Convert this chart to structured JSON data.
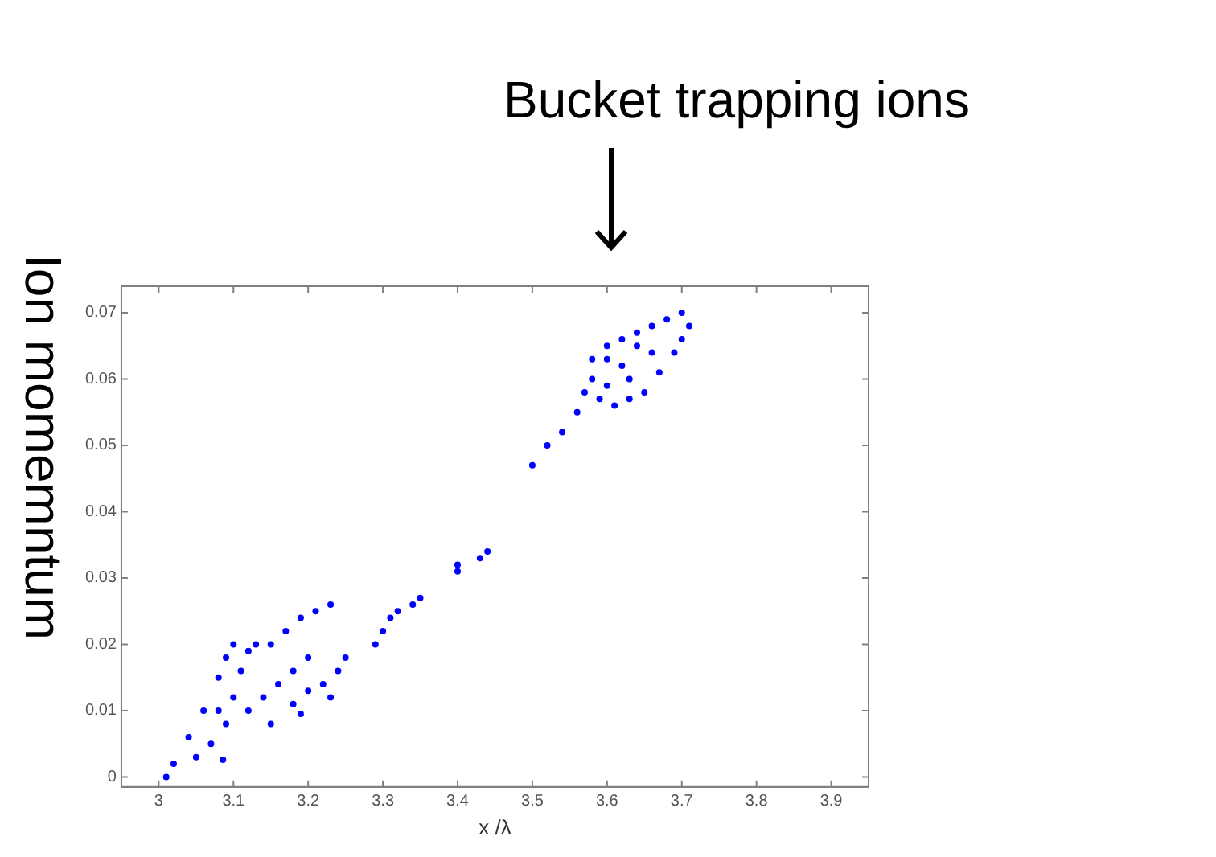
{
  "chart_data": {
    "type": "scatter",
    "xlabel": "x /λ",
    "ylabel": "Ion momemntum",
    "annotations": [
      "Bucket trapping ions"
    ],
    "xlim": [
      2.95,
      3.95
    ],
    "xticks": [
      3,
      3.1,
      3.2,
      3.3,
      3.4,
      3.5,
      3.6,
      3.7,
      3.8,
      3.9
    ],
    "ylim": [
      -0.0015,
      0.074
    ],
    "yticks": [
      0,
      0.01,
      0.02,
      0.03,
      0.04,
      0.05,
      0.06,
      0.07
    ],
    "marker": "circle",
    "series": [
      {
        "color": "#0000ff",
        "x": [
          3.01,
          3.02,
          3.04,
          3.06,
          3.08,
          3.09,
          3.1,
          3.05,
          3.07,
          3.09,
          3.1,
          3.08,
          3.11,
          3.12,
          3.13,
          3.086,
          3.12,
          3.14,
          3.16,
          3.18,
          3.2,
          3.15,
          3.17,
          3.19,
          3.21,
          3.23,
          3.15,
          3.18,
          3.2,
          3.22,
          3.24,
          3.25,
          3.23,
          3.19,
          3.29,
          3.3,
          3.31,
          3.32,
          3.34,
          3.35,
          3.4,
          3.4,
          3.43,
          3.44,
          3.5,
          3.52,
          3.54,
          3.56,
          3.57,
          3.58,
          3.58,
          3.6,
          3.62,
          3.64,
          3.66,
          3.68,
          3.7,
          3.71,
          3.7,
          3.69,
          3.67,
          3.65,
          3.63,
          3.61,
          3.59,
          3.6,
          3.62,
          3.66,
          3.64,
          3.6,
          3.63
        ],
        "values": [
          0,
          0.002,
          0.006,
          0.01,
          0.015,
          0.018,
          0.02,
          0.003,
          0.005,
          0.008,
          0.012,
          0.01,
          0.016,
          0.019,
          0.02,
          0.0026,
          0.01,
          0.012,
          0.014,
          0.016,
          0.018,
          0.02,
          0.022,
          0.024,
          0.025,
          0.026,
          0.008,
          0.011,
          0.013,
          0.014,
          0.016,
          0.018,
          0.012,
          0.0095,
          0.02,
          0.022,
          0.024,
          0.025,
          0.026,
          0.027,
          0.031,
          0.032,
          0.033,
          0.034,
          0.047,
          0.05,
          0.052,
          0.055,
          0.058,
          0.06,
          0.063,
          0.065,
          0.066,
          0.067,
          0.068,
          0.069,
          0.07,
          0.068,
          0.066,
          0.064,
          0.061,
          0.058,
          0.057,
          0.056,
          0.057,
          0.059,
          0.062,
          0.064,
          0.065,
          0.063,
          0.06
        ]
      }
    ]
  }
}
